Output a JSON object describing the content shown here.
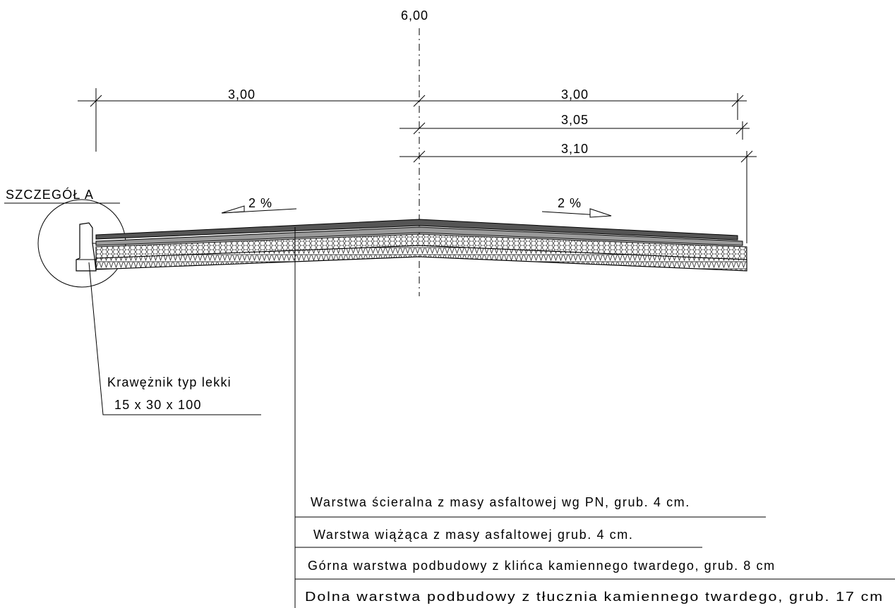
{
  "dimensions": {
    "total": "6,00",
    "left_half": "3,00",
    "right_half": "3,00",
    "right_mid": "3,05",
    "right_outer": "3,10"
  },
  "slopes": {
    "left": "2 %",
    "right": "2 %"
  },
  "detail_label": "SZCZEGÓŁ  A",
  "curb": {
    "line1": "Krawężnik typ lekki",
    "line2": "15 x 30 x 100"
  },
  "layers": [
    "Warstwa ścieralna z masy asfaltowej wg PN, grub. 4 cm.",
    "Warstwa wiążąca z masy asfaltowej  grub. 4 cm.",
    "Górna warstwa podbudowy z klińca kamiennego twardego, grub. 8 cm",
    "Dolna warstwa podbudowy z tłucznia kamiennego twardego, grub. 17 cm"
  ]
}
